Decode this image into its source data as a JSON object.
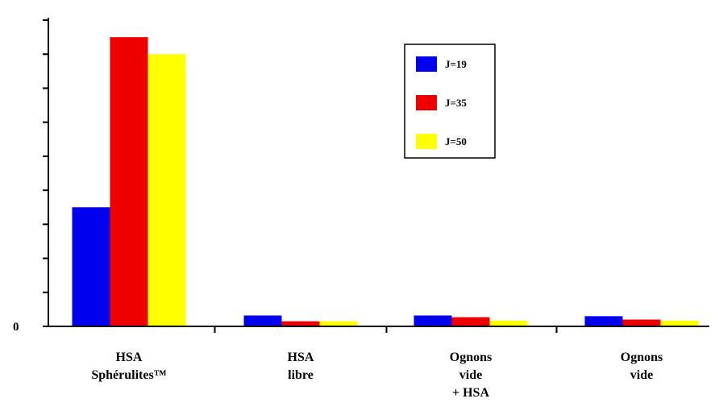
{
  "chart_data": {
    "type": "bar",
    "categories": [
      [
        "HSA",
        "Sphérulites™"
      ],
      [
        "HSA",
        "libre"
      ],
      [
        "Ognons",
        "vide",
        "+ HSA"
      ],
      [
        "Ognons",
        "vide"
      ]
    ],
    "series": [
      {
        "name": "J=19",
        "color": "#0000ee",
        "values": [
          3.5,
          0.32,
          0.32,
          0.3
        ]
      },
      {
        "name": "J=35",
        "color": "#ee0000",
        "values": [
          8.5,
          0.15,
          0.27,
          0.2
        ]
      },
      {
        "name": "J=50",
        "color": "#ffff00",
        "values": [
          8.0,
          0.15,
          0.17,
          0.17
        ]
      }
    ],
    "ylim": [
      0,
      9
    ],
    "ytick_step": 1,
    "ytick_labels": [
      {
        "value": 0,
        "label": "0"
      }
    ],
    "title": "",
    "xlabel": "",
    "ylabel": "",
    "legend": {
      "placement": "top-right",
      "boxed": true
    },
    "grid": false
  }
}
